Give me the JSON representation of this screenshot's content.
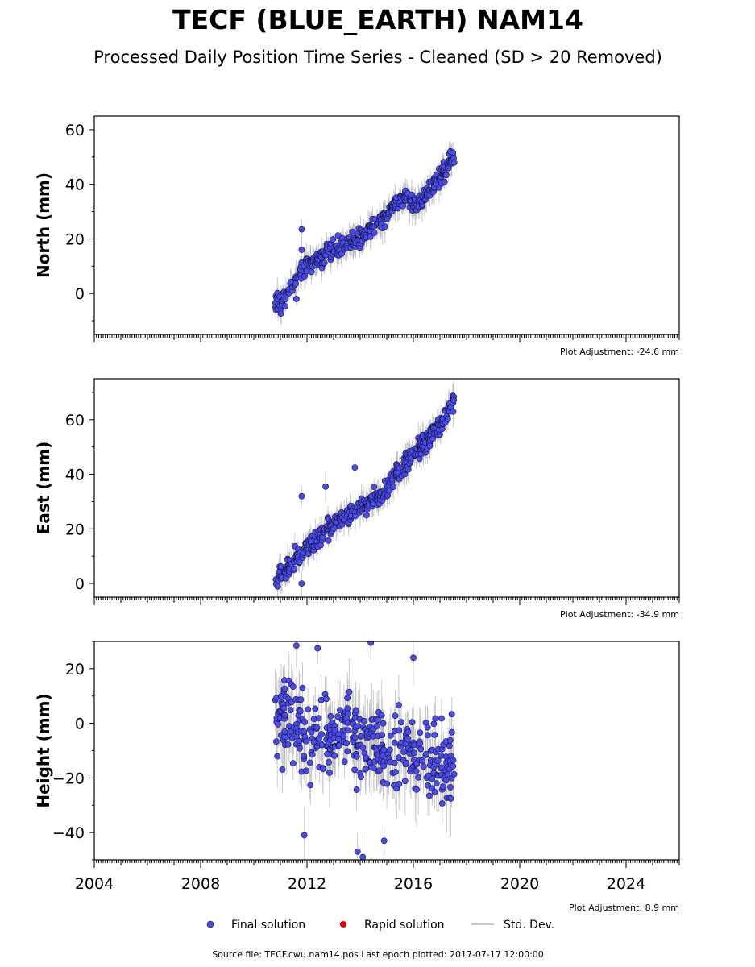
{
  "title": "TECF (BLUE_EARTH) NAM14",
  "subtitle": "Processed Daily Position Time Series - Cleaned (SD > 20 Removed)",
  "source_text": "Source file: TECF.cwu.nam14.pos  Last epoch plotted: 2017-07-17 12:00:00",
  "legend": {
    "final": "Final solution",
    "rapid": "Rapid solution",
    "stddev": "Std. Dev."
  },
  "colors": {
    "final_fill": "#4b4bf0",
    "final_edge": "#111133",
    "rapid": "#dd0000",
    "stddev": "#b8b8b8",
    "axes": "#000000"
  },
  "chart_data": [
    {
      "type": "scatter",
      "ylabel": "North (mm)",
      "adjustment": "Plot Adjustment: -24.6 mm",
      "xlim": [
        2004,
        2026
      ],
      "ylim": [
        -15,
        65
      ],
      "yticks": [
        0,
        20,
        40,
        60
      ],
      "yticklabels": [
        "0",
        "20",
        "40",
        "60"
      ],
      "xtick_labels_shown": false,
      "series": [
        {
          "name": "Final solution",
          "trend": [
            [
              2010.8,
              -2
            ],
            [
              2011.0,
              -4
            ],
            [
              2011.4,
              3
            ],
            [
              2012.0,
              10
            ],
            [
              2013.0,
              16
            ],
            [
              2014.0,
              20
            ],
            [
              2015.0,
              29
            ],
            [
              2015.8,
              37
            ],
            [
              2016.1,
              32
            ],
            [
              2016.5,
              37
            ],
            [
              2017.55,
              50
            ]
          ],
          "scatter_mm": 2.5,
          "outliers": [
            [
              2011.8,
              23.5
            ],
            [
              2011.8,
              16
            ],
            [
              2011.6,
              -2
            ]
          ]
        }
      ]
    },
    {
      "type": "scatter",
      "ylabel": "East (mm)",
      "adjustment": "Plot Adjustment: -34.9 mm",
      "xlim": [
        2004,
        2026
      ],
      "ylim": [
        -5,
        75
      ],
      "yticks": [
        0,
        20,
        40,
        60
      ],
      "yticklabels": [
        "0",
        "20",
        "40",
        "60"
      ],
      "xtick_labels_shown": false,
      "series": [
        {
          "name": "Final solution",
          "trend": [
            [
              2010.8,
              0
            ],
            [
              2011.3,
              6
            ],
            [
              2012.0,
              13
            ],
            [
              2013.0,
              22
            ],
            [
              2014.0,
              28
            ],
            [
              2014.8,
              32
            ],
            [
              2015.5,
              42
            ],
            [
              2016.5,
              52
            ],
            [
              2017.55,
              66
            ]
          ],
          "scatter_mm": 2.6,
          "outliers": [
            [
              2011.8,
              32
            ],
            [
              2012.7,
              35.5
            ],
            [
              2013.8,
              42.5
            ],
            [
              2011.8,
              0
            ]
          ]
        }
      ]
    },
    {
      "type": "scatter",
      "ylabel": "Height (mm)",
      "adjustment": "Plot Adjustment: 8.9 mm",
      "xlim": [
        2004,
        2026
      ],
      "ylim": [
        -50,
        30
      ],
      "yticks": [
        -40,
        -20,
        0,
        20
      ],
      "yticklabels": [
        "−40",
        "−20",
        "0",
        "20"
      ],
      "xticks": [
        2004,
        2008,
        2012,
        2016,
        2020,
        2024
      ],
      "xticklabels": [
        "2004",
        "2008",
        "2012",
        "2016",
        "2020",
        "2024"
      ],
      "xtick_labels_shown": true,
      "series": [
        {
          "name": "Final solution",
          "trend": [
            [
              2010.8,
              0
            ],
            [
              2011.5,
              2
            ],
            [
              2012.0,
              -10
            ],
            [
              2012.5,
              -5
            ],
            [
              2013.0,
              -8
            ],
            [
              2013.5,
              2
            ],
            [
              2014.0,
              -10
            ],
            [
              2014.5,
              -5
            ],
            [
              2015.0,
              -15
            ],
            [
              2015.5,
              -5
            ],
            [
              2016.0,
              -12
            ],
            [
              2016.5,
              -8
            ],
            [
              2017.0,
              -15
            ],
            [
              2017.55,
              -15
            ]
          ],
          "scatter_mm": 10,
          "outliers": [
            [
              2011.6,
              28.5
            ],
            [
              2014.4,
              29.5
            ],
            [
              2012.4,
              27.5
            ],
            [
              2016.0,
              24
            ],
            [
              2013.9,
              -47
            ],
            [
              2014.1,
              -49
            ],
            [
              2014.9,
              -43
            ],
            [
              2011.9,
              -41
            ]
          ]
        }
      ]
    }
  ]
}
